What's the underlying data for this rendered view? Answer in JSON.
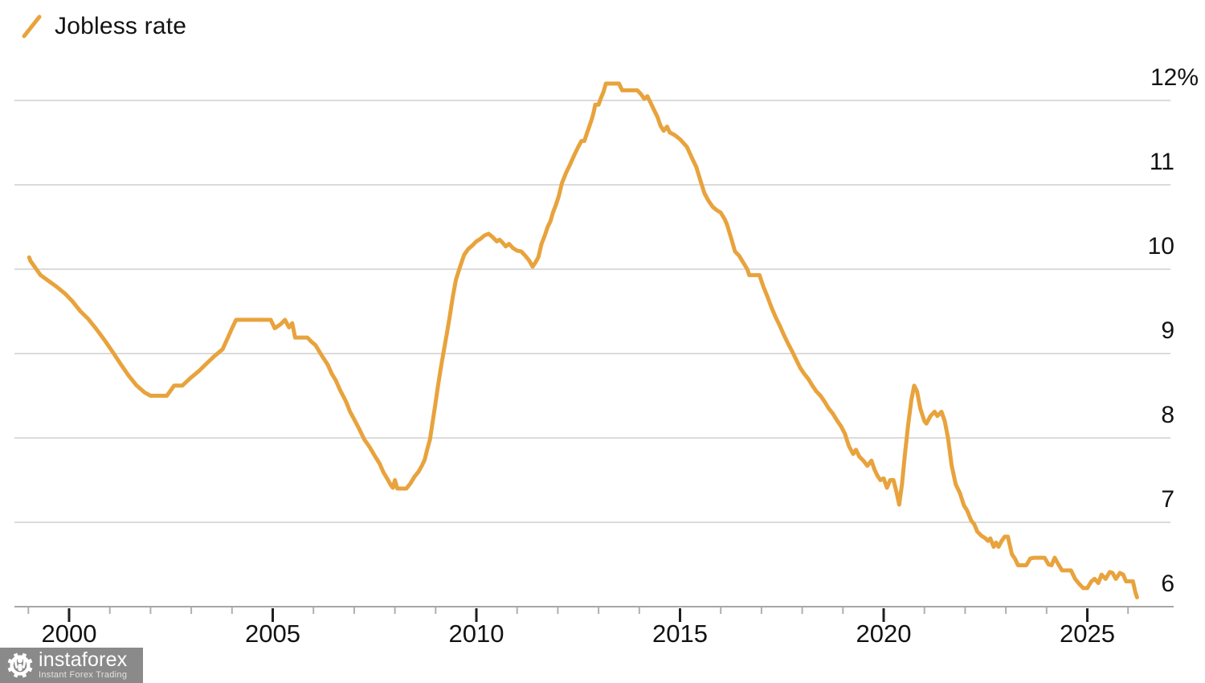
{
  "legend": {
    "label": "Jobless rate"
  },
  "watermark": {
    "brand": "instaforex",
    "tagline": "Instant Forex Trading"
  },
  "colors": {
    "line": "#E8A33D",
    "grid": "#CFCFCF",
    "axis": "#A6A6A6",
    "major_tick": "#1F1F1F",
    "minor_tick": "#AFAFAF",
    "text": "#121212",
    "watermark_bg": "#8A8A8A",
    "watermark_fg": "#FFFFFF"
  },
  "chart_data": {
    "type": "line",
    "title": "",
    "xlabel": "",
    "ylabel": "",
    "grid": "horizontal",
    "legend_position": "top-left",
    "y_axis": {
      "unit": "%",
      "range": [
        5.95,
        12.4
      ],
      "ticks": [
        {
          "value": 12,
          "label": "12%"
        },
        {
          "value": 11,
          "label": "11"
        },
        {
          "value": 10,
          "label": "10"
        },
        {
          "value": 9,
          "label": "9"
        },
        {
          "value": 8,
          "label": "8"
        },
        {
          "value": 7,
          "label": "7"
        },
        {
          "value": 6,
          "label": "6"
        }
      ]
    },
    "x_axis": {
      "range": [
        1998.66,
        2027.16
      ],
      "ticks_major": [
        {
          "value": 2000,
          "label": "2000"
        },
        {
          "value": 2005,
          "label": "2005"
        },
        {
          "value": 2010,
          "label": "2010"
        },
        {
          "value": 2015,
          "label": "2015"
        },
        {
          "value": 2020,
          "label": "2020"
        },
        {
          "value": 2025,
          "label": "2025"
        }
      ],
      "ticks_minor": [
        1999,
        2001,
        2002,
        2003,
        2004,
        2006,
        2007,
        2008,
        2009,
        2011,
        2012,
        2013,
        2014,
        2016,
        2017,
        2018,
        2019,
        2021,
        2022,
        2023,
        2024,
        2026
      ]
    },
    "series": [
      {
        "name": "Jobless rate",
        "color": "#E8A33D",
        "points": [
          [
            1999.02,
            10.14
          ],
          [
            1999.05,
            10.1
          ],
          [
            1999.3,
            9.93
          ],
          [
            1999.5,
            9.86
          ],
          [
            1999.7,
            9.79
          ],
          [
            1999.9,
            9.71
          ],
          [
            2000.08,
            9.62
          ],
          [
            2000.28,
            9.5
          ],
          [
            2000.47,
            9.41
          ],
          [
            2000.67,
            9.29
          ],
          [
            2000.87,
            9.16
          ],
          [
            2001.07,
            9.02
          ],
          [
            2001.26,
            8.88
          ],
          [
            2001.46,
            8.74
          ],
          [
            2001.66,
            8.62
          ],
          [
            2001.85,
            8.54
          ],
          [
            2002.0,
            8.5
          ],
          [
            2002.4,
            8.5
          ],
          [
            2002.58,
            8.62
          ],
          [
            2002.78,
            8.62
          ],
          [
            2002.98,
            8.71
          ],
          [
            2003.18,
            8.79
          ],
          [
            2003.37,
            8.88
          ],
          [
            2003.57,
            8.97
          ],
          [
            2003.77,
            9.05
          ],
          [
            2003.9,
            9.19
          ],
          [
            2004.0,
            9.3
          ],
          [
            2004.1,
            9.4
          ],
          [
            2004.95,
            9.4
          ],
          [
            2005.05,
            9.3
          ],
          [
            2005.2,
            9.35
          ],
          [
            2005.3,
            9.4
          ],
          [
            2005.4,
            9.31
          ],
          [
            2005.48,
            9.36
          ],
          [
            2005.55,
            9.19
          ],
          [
            2005.85,
            9.19
          ],
          [
            2005.95,
            9.14
          ],
          [
            2006.05,
            9.1
          ],
          [
            2006.2,
            8.98
          ],
          [
            2006.35,
            8.87
          ],
          [
            2006.45,
            8.76
          ],
          [
            2006.55,
            8.68
          ],
          [
            2006.65,
            8.57
          ],
          [
            2006.8,
            8.43
          ],
          [
            2006.9,
            8.31
          ],
          [
            2007.0,
            8.22
          ],
          [
            2007.12,
            8.11
          ],
          [
            2007.25,
            7.98
          ],
          [
            2007.38,
            7.89
          ],
          [
            2007.5,
            7.79
          ],
          [
            2007.62,
            7.7
          ],
          [
            2007.72,
            7.59
          ],
          [
            2007.82,
            7.51
          ],
          [
            2007.9,
            7.44
          ],
          [
            2007.95,
            7.41
          ],
          [
            2008.0,
            7.5
          ],
          [
            2008.06,
            7.4
          ],
          [
            2008.28,
            7.4
          ],
          [
            2008.38,
            7.46
          ],
          [
            2008.48,
            7.54
          ],
          [
            2008.58,
            7.6
          ],
          [
            2008.66,
            7.67
          ],
          [
            2008.73,
            7.74
          ],
          [
            2008.79,
            7.86
          ],
          [
            2008.86,
            7.98
          ],
          [
            2008.92,
            8.17
          ],
          [
            2008.98,
            8.36
          ],
          [
            2009.05,
            8.59
          ],
          [
            2009.12,
            8.81
          ],
          [
            2009.2,
            9.03
          ],
          [
            2009.28,
            9.25
          ],
          [
            2009.35,
            9.45
          ],
          [
            2009.42,
            9.67
          ],
          [
            2009.5,
            9.88
          ],
          [
            2009.6,
            10.03
          ],
          [
            2009.7,
            10.17
          ],
          [
            2009.8,
            10.24
          ],
          [
            2009.9,
            10.28
          ],
          [
            2010.0,
            10.33
          ],
          [
            2010.1,
            10.36
          ],
          [
            2010.2,
            10.4
          ],
          [
            2010.3,
            10.42
          ],
          [
            2010.4,
            10.38
          ],
          [
            2010.5,
            10.33
          ],
          [
            2010.57,
            10.35
          ],
          [
            2010.65,
            10.31
          ],
          [
            2010.72,
            10.27
          ],
          [
            2010.8,
            10.3
          ],
          [
            2010.9,
            10.25
          ],
          [
            2011.0,
            10.22
          ],
          [
            2011.1,
            10.21
          ],
          [
            2011.2,
            10.16
          ],
          [
            2011.3,
            10.1
          ],
          [
            2011.38,
            10.03
          ],
          [
            2011.45,
            10.08
          ],
          [
            2011.52,
            10.14
          ],
          [
            2011.6,
            10.3
          ],
          [
            2011.68,
            10.4
          ],
          [
            2011.75,
            10.5
          ],
          [
            2011.82,
            10.57
          ],
          [
            2011.88,
            10.67
          ],
          [
            2011.95,
            10.76
          ],
          [
            2012.02,
            10.86
          ],
          [
            2012.1,
            11.02
          ],
          [
            2012.2,
            11.14
          ],
          [
            2012.3,
            11.24
          ],
          [
            2012.4,
            11.35
          ],
          [
            2012.5,
            11.45
          ],
          [
            2012.58,
            11.52
          ],
          [
            2012.65,
            11.52
          ],
          [
            2012.72,
            11.62
          ],
          [
            2012.78,
            11.7
          ],
          [
            2012.84,
            11.79
          ],
          [
            2012.88,
            11.86
          ],
          [
            2012.92,
            11.95
          ],
          [
            2013.0,
            11.95
          ],
          [
            2013.06,
            12.03
          ],
          [
            2013.12,
            12.1
          ],
          [
            2013.18,
            12.2
          ],
          [
            2013.5,
            12.2
          ],
          [
            2013.58,
            12.12
          ],
          [
            2013.95,
            12.12
          ],
          [
            2014.05,
            12.07
          ],
          [
            2014.12,
            12.02
          ],
          [
            2014.2,
            12.05
          ],
          [
            2014.28,
            11.97
          ],
          [
            2014.35,
            11.9
          ],
          [
            2014.45,
            11.8
          ],
          [
            2014.52,
            11.7
          ],
          [
            2014.6,
            11.64
          ],
          [
            2014.68,
            11.69
          ],
          [
            2014.75,
            11.62
          ],
          [
            2014.87,
            11.59
          ],
          [
            2015.0,
            11.54
          ],
          [
            2015.17,
            11.45
          ],
          [
            2015.3,
            11.31
          ],
          [
            2015.4,
            11.21
          ],
          [
            2015.5,
            11.05
          ],
          [
            2015.6,
            10.9
          ],
          [
            2015.7,
            10.81
          ],
          [
            2015.8,
            10.74
          ],
          [
            2015.9,
            10.7
          ],
          [
            2016.0,
            10.67
          ],
          [
            2016.1,
            10.59
          ],
          [
            2016.16,
            10.52
          ],
          [
            2016.26,
            10.36
          ],
          [
            2016.35,
            10.21
          ],
          [
            2016.45,
            10.16
          ],
          [
            2016.55,
            10.08
          ],
          [
            2016.65,
            10.0
          ],
          [
            2016.7,
            9.93
          ],
          [
            2016.95,
            9.93
          ],
          [
            2017.05,
            9.79
          ],
          [
            2017.15,
            9.67
          ],
          [
            2017.25,
            9.54
          ],
          [
            2017.35,
            9.43
          ],
          [
            2017.45,
            9.33
          ],
          [
            2017.55,
            9.22
          ],
          [
            2017.65,
            9.12
          ],
          [
            2017.75,
            9.03
          ],
          [
            2017.85,
            8.93
          ],
          [
            2017.95,
            8.83
          ],
          [
            2018.05,
            8.76
          ],
          [
            2018.15,
            8.7
          ],
          [
            2018.25,
            8.62
          ],
          [
            2018.35,
            8.55
          ],
          [
            2018.45,
            8.5
          ],
          [
            2018.55,
            8.43
          ],
          [
            2018.65,
            8.35
          ],
          [
            2018.75,
            8.29
          ],
          [
            2018.85,
            8.21
          ],
          [
            2018.95,
            8.14
          ],
          [
            2019.05,
            8.05
          ],
          [
            2019.1,
            7.97
          ],
          [
            2019.15,
            7.9
          ],
          [
            2019.25,
            7.81
          ],
          [
            2019.32,
            7.86
          ],
          [
            2019.4,
            7.78
          ],
          [
            2019.5,
            7.73
          ],
          [
            2019.6,
            7.67
          ],
          [
            2019.7,
            7.73
          ],
          [
            2019.78,
            7.62
          ],
          [
            2019.85,
            7.55
          ],
          [
            2019.92,
            7.5
          ],
          [
            2020.0,
            7.52
          ],
          [
            2020.08,
            7.41
          ],
          [
            2020.16,
            7.5
          ],
          [
            2020.24,
            7.5
          ],
          [
            2020.32,
            7.35
          ],
          [
            2020.38,
            7.21
          ],
          [
            2020.45,
            7.45
          ],
          [
            2020.52,
            7.8
          ],
          [
            2020.6,
            8.15
          ],
          [
            2020.68,
            8.45
          ],
          [
            2020.75,
            8.62
          ],
          [
            2020.82,
            8.55
          ],
          [
            2020.9,
            8.35
          ],
          [
            2021.0,
            8.2
          ],
          [
            2021.05,
            8.17
          ],
          [
            2021.15,
            8.26
          ],
          [
            2021.25,
            8.31
          ],
          [
            2021.32,
            8.26
          ],
          [
            2021.42,
            8.31
          ],
          [
            2021.5,
            8.2
          ],
          [
            2021.58,
            8.0
          ],
          [
            2021.67,
            7.67
          ],
          [
            2021.77,
            7.45
          ],
          [
            2021.87,
            7.35
          ],
          [
            2021.97,
            7.2
          ],
          [
            2022.05,
            7.14
          ],
          [
            2022.15,
            7.02
          ],
          [
            2022.22,
            6.98
          ],
          [
            2022.3,
            6.89
          ],
          [
            2022.4,
            6.84
          ],
          [
            2022.5,
            6.81
          ],
          [
            2022.56,
            6.78
          ],
          [
            2022.62,
            6.81
          ],
          [
            2022.7,
            6.71
          ],
          [
            2022.76,
            6.76
          ],
          [
            2022.82,
            6.71
          ],
          [
            2022.9,
            6.78
          ],
          [
            2022.97,
            6.83
          ],
          [
            2023.05,
            6.83
          ],
          [
            2023.15,
            6.62
          ],
          [
            2023.22,
            6.57
          ],
          [
            2023.3,
            6.49
          ],
          [
            2023.5,
            6.49
          ],
          [
            2023.6,
            6.57
          ],
          [
            2023.7,
            6.58
          ],
          [
            2023.95,
            6.58
          ],
          [
            2024.05,
            6.5
          ],
          [
            2024.12,
            6.49
          ],
          [
            2024.2,
            6.58
          ],
          [
            2024.28,
            6.51
          ],
          [
            2024.38,
            6.43
          ],
          [
            2024.6,
            6.43
          ],
          [
            2024.7,
            6.33
          ],
          [
            2024.8,
            6.27
          ],
          [
            2024.9,
            6.22
          ],
          [
            2025.0,
            6.22
          ],
          [
            2025.1,
            6.3
          ],
          [
            2025.18,
            6.33
          ],
          [
            2025.27,
            6.28
          ],
          [
            2025.35,
            6.38
          ],
          [
            2025.45,
            6.33
          ],
          [
            2025.55,
            6.41
          ],
          [
            2025.62,
            6.4
          ],
          [
            2025.7,
            6.33
          ],
          [
            2025.8,
            6.4
          ],
          [
            2025.88,
            6.38
          ],
          [
            2025.95,
            6.3
          ],
          [
            2026.12,
            6.3
          ],
          [
            2026.18,
            6.17
          ],
          [
            2026.22,
            6.11
          ]
        ]
      }
    ]
  }
}
